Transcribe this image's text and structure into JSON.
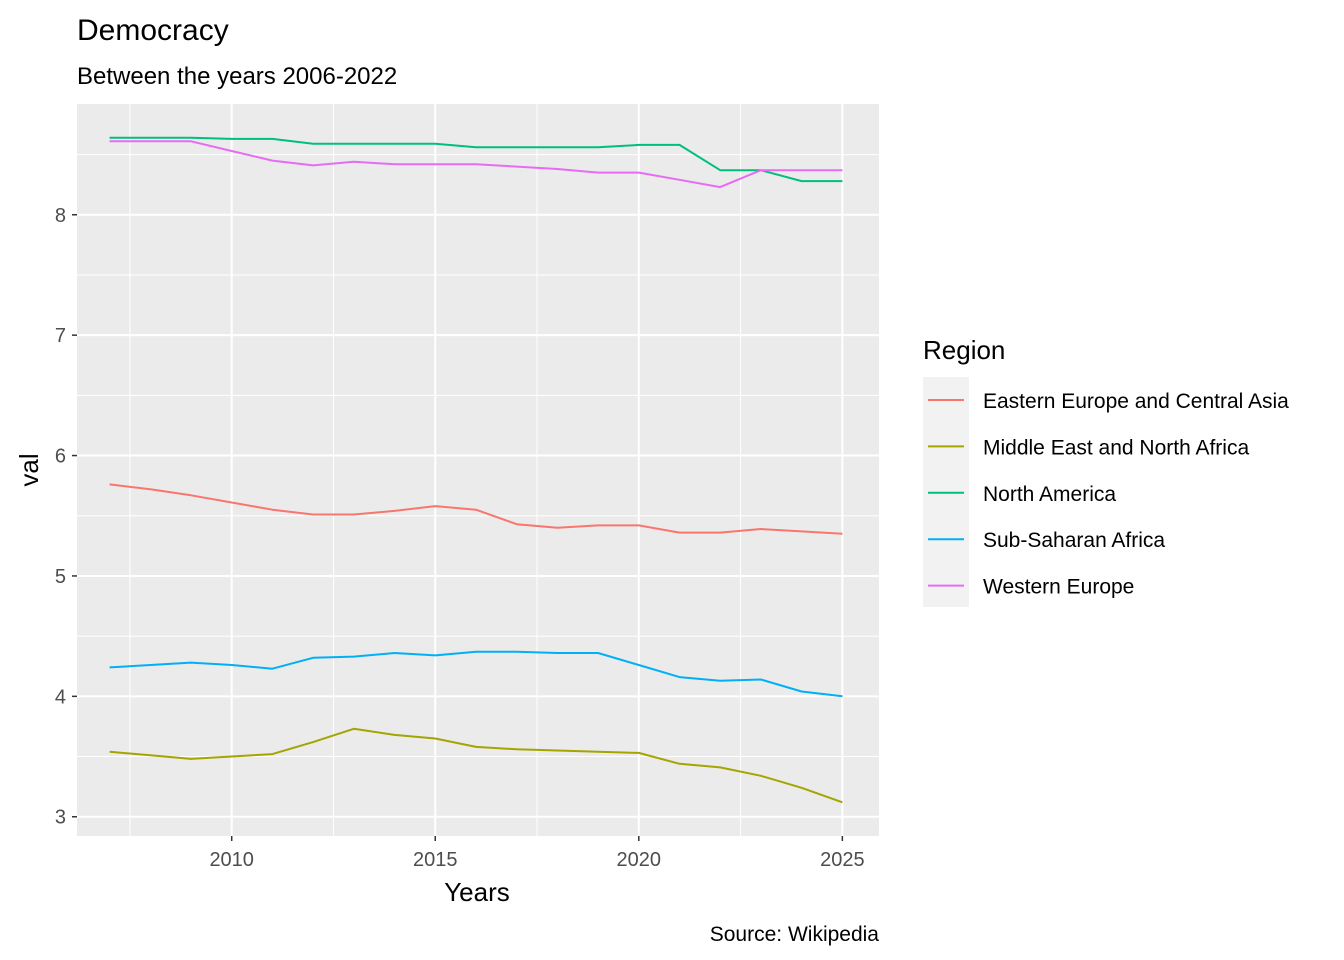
{
  "chart_data": {
    "type": "line",
    "title": "Democracy",
    "subtitle": "Between the years 2006-2022",
    "xlabel": "Years",
    "ylabel": "val",
    "caption": "Source: Wikipedia",
    "xlim": [
      2006.2,
      2025.9
    ],
    "ylim": [
      2.84,
      8.92
    ],
    "x_ticks": [
      2010,
      2015,
      2020,
      2025
    ],
    "y_ticks": [
      3,
      4,
      5,
      6,
      7,
      8
    ],
    "grid": true,
    "legend": {
      "title": "Region",
      "position": "right"
    },
    "x": [
      2007,
      2008,
      2009,
      2010,
      2011,
      2012,
      2013,
      2014,
      2015,
      2016,
      2017,
      2018,
      2019,
      2020,
      2021,
      2022,
      2023,
      2024,
      2025
    ],
    "series": [
      {
        "name": "Eastern Europe and Central Asia",
        "color": "#F8766D",
        "values": [
          5.76,
          5.72,
          5.67,
          5.61,
          5.55,
          5.51,
          5.51,
          5.54,
          5.58,
          5.55,
          5.43,
          5.4,
          5.42,
          5.42,
          5.36,
          5.36,
          5.39,
          5.37,
          5.35
        ]
      },
      {
        "name": "Middle East and North Africa",
        "color": "#A3A500",
        "values": [
          3.54,
          3.51,
          3.48,
          3.5,
          3.52,
          3.62,
          3.73,
          3.68,
          3.65,
          3.58,
          3.56,
          3.55,
          3.54,
          3.53,
          3.44,
          3.41,
          3.34,
          3.24,
          3.12
        ]
      },
      {
        "name": "North America",
        "color": "#00BF7D",
        "values": [
          8.64,
          8.64,
          8.64,
          8.63,
          8.63,
          8.59,
          8.59,
          8.59,
          8.59,
          8.56,
          8.56,
          8.56,
          8.56,
          8.58,
          8.58,
          8.37,
          8.37,
          8.28,
          8.28
        ]
      },
      {
        "name": "Sub-Saharan Africa",
        "color": "#00B0F6",
        "values": [
          4.24,
          4.26,
          4.28,
          4.26,
          4.23,
          4.32,
          4.33,
          4.36,
          4.34,
          4.37,
          4.37,
          4.36,
          4.36,
          4.26,
          4.16,
          4.13,
          4.14,
          4.04,
          4.0
        ]
      },
      {
        "name": "Western Europe",
        "color": "#E76BF3",
        "values": [
          8.61,
          8.61,
          8.61,
          8.53,
          8.45,
          8.41,
          8.44,
          8.42,
          8.42,
          8.42,
          8.4,
          8.38,
          8.35,
          8.35,
          8.29,
          8.23,
          8.37,
          8.37,
          8.37
        ]
      }
    ]
  }
}
